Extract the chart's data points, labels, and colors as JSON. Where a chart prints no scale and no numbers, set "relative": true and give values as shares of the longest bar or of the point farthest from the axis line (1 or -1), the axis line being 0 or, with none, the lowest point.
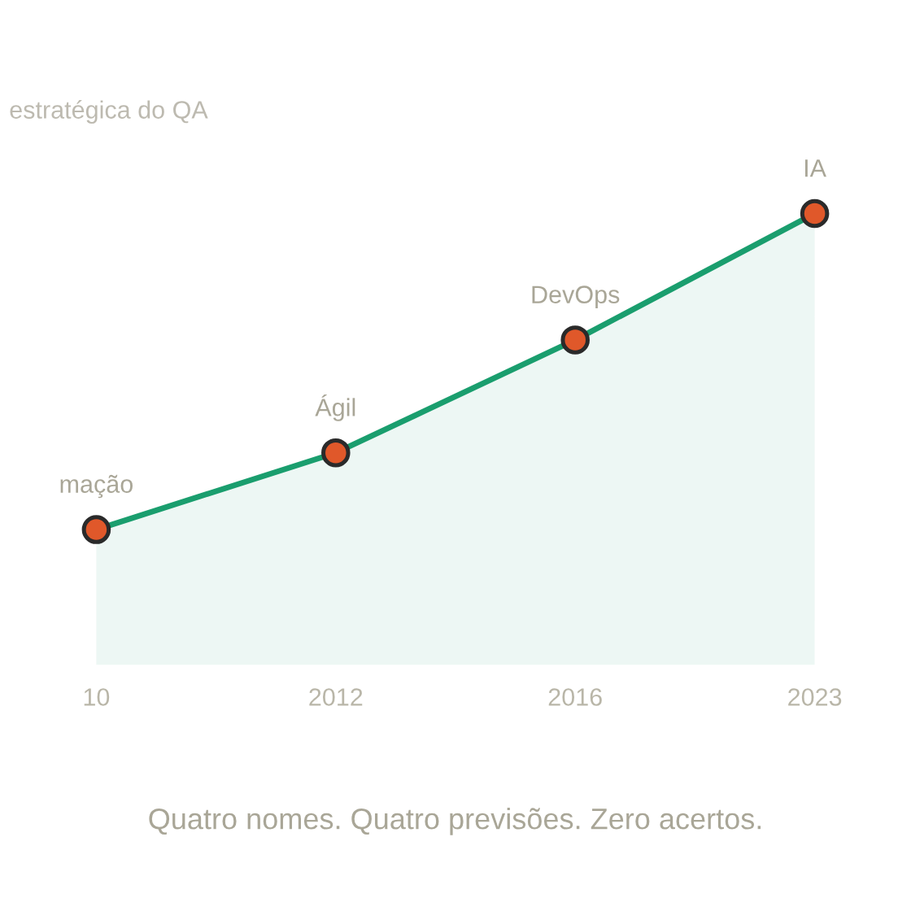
{
  "chart_data": {
    "type": "area",
    "title": "estratégica do QA",
    "categories": [
      "10",
      "2012",
      "2016",
      "2023"
    ],
    "relative": true,
    "series": [
      {
        "color": "#1a9e6e",
        "values": [
          0.3,
          0.47,
          0.72,
          1
        ]
      }
    ],
    "marker": "circle",
    "grid": false,
    "legend": false,
    "annotations": [
      {
        "text": "mação",
        "x": "10",
        "y": 0.3
      },
      {
        "text": "Ágil",
        "x": "2012",
        "y": 0.47
      },
      {
        "text": "DevOps",
        "x": "2016",
        "y": 0.72
      },
      {
        "text": "IA",
        "x": "2023",
        "y": 1
      },
      "Quatro nomes. Quatro previsões. Zero acertos."
    ]
  }
}
